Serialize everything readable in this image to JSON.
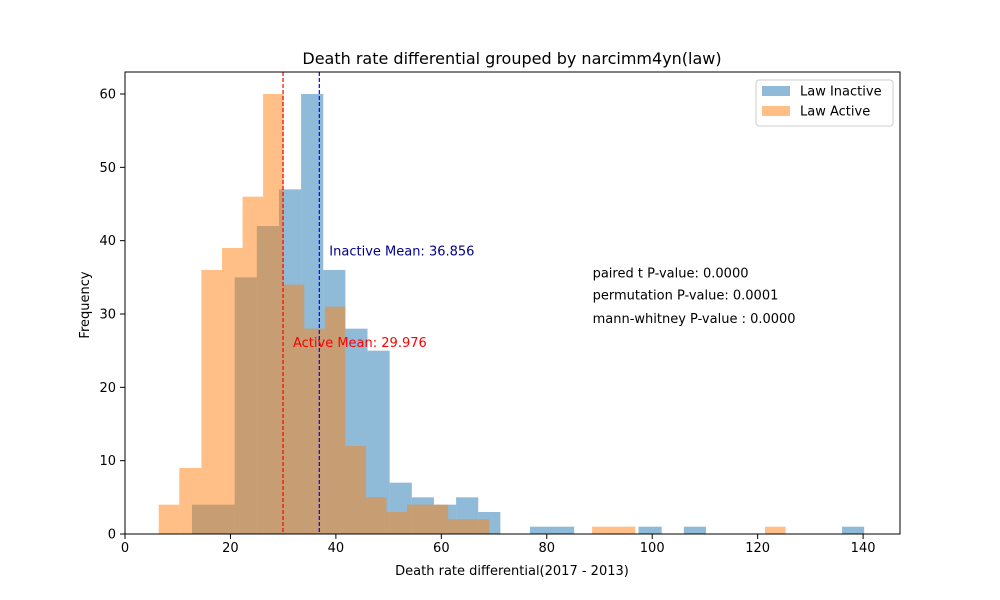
{
  "chart_data": {
    "type": "bar",
    "subtype": "histogram-overlay",
    "title": "Death rate differential grouped by narcimm4yn(law)",
    "xlabel": "Death rate differential(2017 - 2013)",
    "ylabel": "Frequency",
    "xlim": [
      0,
      147
    ],
    "ylim": [
      0,
      63
    ],
    "xticks": [
      0,
      20,
      40,
      60,
      80,
      100,
      120,
      140
    ],
    "yticks": [
      0,
      10,
      20,
      30,
      40,
      50,
      60
    ],
    "grid": false,
    "legend_position": "top-right",
    "series": [
      {
        "name": "Law Inactive",
        "color": "#1f77b4",
        "opacity": 0.5,
        "bins": [
          {
            "x0": 12.7,
            "x1": 16.6,
            "value": 4
          },
          {
            "x0": 16.6,
            "x1": 20.8,
            "value": 4
          },
          {
            "x0": 20.8,
            "x1": 25.0,
            "value": 35
          },
          {
            "x0": 25.0,
            "x1": 29.2,
            "value": 42
          },
          {
            "x0": 29.2,
            "x1": 33.4,
            "value": 47
          },
          {
            "x0": 33.4,
            "x1": 37.6,
            "value": 60
          },
          {
            "x0": 37.6,
            "x1": 41.8,
            "value": 36
          },
          {
            "x0": 41.8,
            "x1": 46.0,
            "value": 28
          },
          {
            "x0": 46.0,
            "x1": 50.2,
            "value": 25
          },
          {
            "x0": 50.2,
            "x1": 54.4,
            "value": 7
          },
          {
            "x0": 54.4,
            "x1": 58.6,
            "value": 5
          },
          {
            "x0": 58.6,
            "x1": 62.8,
            "value": 4
          },
          {
            "x0": 62.8,
            "x1": 67.0,
            "value": 5
          },
          {
            "x0": 67.0,
            "x1": 71.2,
            "value": 3
          },
          {
            "x0": 76.8,
            "x1": 85.2,
            "value": 1
          },
          {
            "x0": 97.4,
            "x1": 101.8,
            "value": 1
          },
          {
            "x0": 106.0,
            "x1": 110.2,
            "value": 1
          },
          {
            "x0": 136.0,
            "x1": 140.2,
            "value": 1
          }
        ]
      },
      {
        "name": "Law Active",
        "color": "#ff7f0e",
        "opacity": 0.5,
        "bins": [
          {
            "x0": 6.4,
            "x1": 10.3,
            "value": 4
          },
          {
            "x0": 10.3,
            "x1": 14.5,
            "value": 9
          },
          {
            "x0": 14.5,
            "x1": 18.4,
            "value": 36
          },
          {
            "x0": 18.4,
            "x1": 22.3,
            "value": 39
          },
          {
            "x0": 22.3,
            "x1": 26.2,
            "value": 46
          },
          {
            "x0": 26.2,
            "x1": 30.1,
            "value": 60
          },
          {
            "x0": 30.1,
            "x1": 34.0,
            "value": 34
          },
          {
            "x0": 34.0,
            "x1": 37.9,
            "value": 28
          },
          {
            "x0": 37.9,
            "x1": 41.8,
            "value": 31
          },
          {
            "x0": 41.8,
            "x1": 45.7,
            "value": 12
          },
          {
            "x0": 45.7,
            "x1": 49.6,
            "value": 5
          },
          {
            "x0": 49.6,
            "x1": 53.5,
            "value": 3
          },
          {
            "x0": 53.5,
            "x1": 57.4,
            "value": 4
          },
          {
            "x0": 57.4,
            "x1": 61.3,
            "value": 4
          },
          {
            "x0": 61.3,
            "x1": 65.2,
            "value": 2
          },
          {
            "x0": 65.2,
            "x1": 69.1,
            "value": 2
          },
          {
            "x0": 88.6,
            "x1": 96.8,
            "value": 1
          },
          {
            "x0": 121.4,
            "x1": 125.3,
            "value": 1
          }
        ]
      }
    ],
    "mean_lines": [
      {
        "x": 36.856,
        "color": "#0000ff",
        "label": "Inactive Mean: 36.856",
        "label_color": "#00008b",
        "label_y": 38
      },
      {
        "x": 29.976,
        "color": "#ff0000",
        "label": "Active Mean: 29.976",
        "label_color": "#ff0000",
        "label_y": 25.5
      }
    ],
    "annotations": [
      {
        "text": "paired t P-value: 0.0000",
        "x": 88.7,
        "y": 35
      },
      {
        "text": "permutation P-value: 0.0001",
        "x": 88.7,
        "y": 32
      },
      {
        "text": "mann-whitney P-value : 0.0000",
        "x": 88.7,
        "y": 28.8
      }
    ]
  }
}
